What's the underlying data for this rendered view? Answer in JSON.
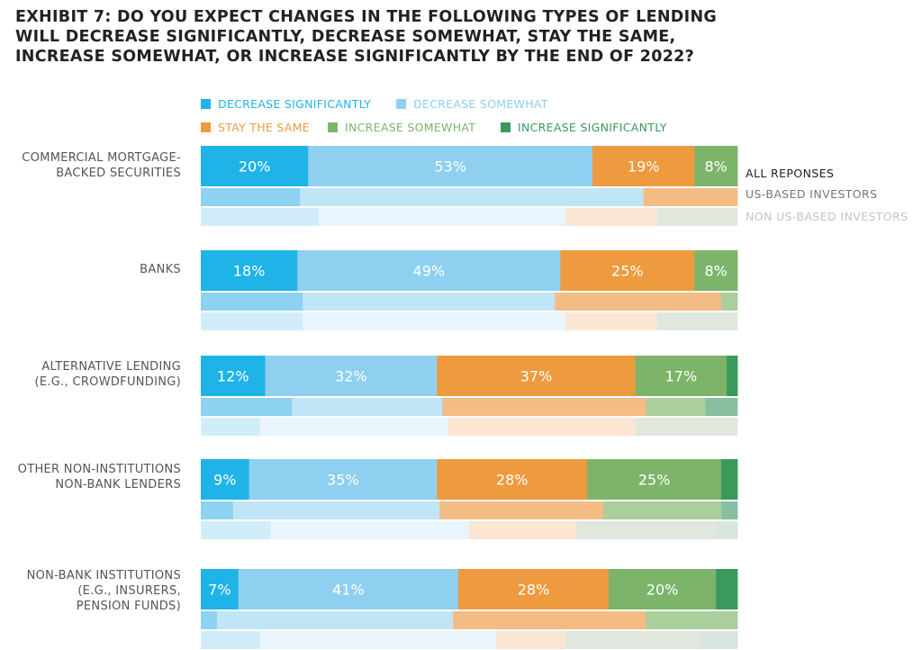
{
  "title_lines": [
    "EXHIBIT 7: DO YOU EXPECT CHANGES IN THE FOLLOWING TYPES OF LENDING",
    "WILL DECREASE SIGNIFICANTLY, DECREASE SOMEWHAT, STAY THE SAME,",
    "INCREASE SOMEWHAT, OR INCREASE SIGNIFICANTLY BY THE END OF 2022?"
  ],
  "legend": [
    {
      "label": "DECREASE SIGNIFICANTLY",
      "color": "#1fb3e8"
    },
    {
      "label": "DECREASE SOMEWHAT",
      "color": "#8fd0f0"
    },
    {
      "label": "STAY THE SAME",
      "color": "#ee9a3f"
    },
    {
      "label": "INCREASE SOMEWHAT",
      "color": "#7cb46a"
    },
    {
      "label": "INCREASE SIGNIFICANTLY",
      "color": "#3a9a5c"
    }
  ],
  "row_labels": {
    "all": "ALL REPONSES",
    "us": "US-BASED INVESTORS",
    "non_us": "NON US-BASED INVESTORS"
  },
  "colors": {
    "all": [
      "#1fb3e8",
      "#8fd0f0",
      "#ee9a3f",
      "#7cb46a",
      "#3a9a5c"
    ],
    "us": [
      "#8dd2f1",
      "#c0e5f7",
      "#f3bc85",
      "#aacf9c",
      "#88bfa0"
    ],
    "non_us": [
      "#d1edf9",
      "#e8f5fc",
      "#fbe6d3",
      "#e0e8de",
      "#d8e5dc"
    ],
    "label_text": "#ffffff",
    "all_row_label": "#222222",
    "us_row_label": "#777777",
    "non_us_row_label": "#c4c4c4"
  },
  "chart_data": {
    "type": "bar",
    "orientation": "horizontal",
    "stacked": true,
    "xlim": [
      0,
      100
    ],
    "series_names": [
      "DECREASE SIGNIFICANTLY",
      "DECREASE SOMEWHAT",
      "STAY THE SAME",
      "INCREASE SOMEWHAT",
      "INCREASE SIGNIFICANTLY"
    ],
    "groups": [
      {
        "category_lines": [
          "COMMERCIAL MORTGAGE-",
          "BACKED SECURITIES"
        ],
        "all": {
          "values": [
            20,
            53,
            19,
            8,
            0
          ],
          "labels": [
            "20%",
            "53%",
            "19%",
            "8%",
            ""
          ]
        },
        "us": [
          18.5,
          64,
          17.5,
          0,
          0
        ],
        "non_us": [
          22,
          46,
          17,
          15,
          0
        ]
      },
      {
        "category_lines": [
          "BANKS"
        ],
        "all": {
          "values": [
            18,
            49,
            25,
            8,
            0
          ],
          "labels": [
            "18%",
            "49%",
            "25%",
            "8%",
            ""
          ]
        },
        "us": [
          19,
          47,
          31,
          3,
          0
        ],
        "non_us": [
          19,
          49,
          17,
          15,
          0
        ]
      },
      {
        "category_lines": [
          "ALTERNATIVE LENDING",
          "(E.G., CROWDFUNDING)"
        ],
        "all": {
          "values": [
            12,
            32,
            37,
            17,
            2
          ],
          "labels": [
            "12%",
            "32%",
            "37%",
            "17%",
            ""
          ]
        },
        "us": [
          17,
          28,
          38,
          11,
          6
        ],
        "non_us": [
          11,
          35,
          35,
          19,
          0
        ]
      },
      {
        "category_lines": [
          "OTHER NON-INSTITUTIONS",
          "NON-BANK LENDERS"
        ],
        "all": {
          "values": [
            9,
            35,
            28,
            25,
            3
          ],
          "labels": [
            "9%",
            "35%",
            "28%",
            "25%",
            ""
          ]
        },
        "us": [
          6,
          38.5,
          30.5,
          22,
          3
        ],
        "non_us": [
          13,
          37,
          20,
          26,
          4
        ]
      },
      {
        "category_lines": [
          "NON-BANK INSTITUTIONS",
          "(E.G., INSURERS,",
          "PENSION FUNDS)"
        ],
        "all": {
          "values": [
            7,
            41,
            28,
            20,
            4
          ],
          "labels": [
            "7%",
            "41%",
            "28%",
            "20%",
            ""
          ]
        },
        "us": [
          3,
          44,
          36,
          17,
          0
        ],
        "non_us": [
          11,
          44,
          13,
          25,
          7
        ]
      }
    ]
  }
}
